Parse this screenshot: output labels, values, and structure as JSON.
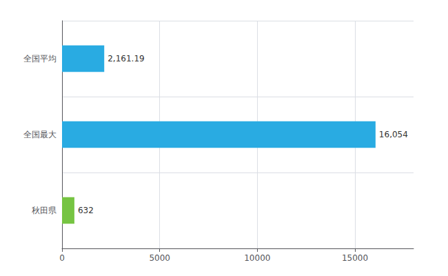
{
  "chart_data": {
    "type": "bar",
    "orientation": "horizontal",
    "categories": [
      "全国平均",
      "全国最大",
      "秋田県"
    ],
    "values": [
      2161.19,
      16054,
      632
    ],
    "value_labels": [
      "2,161.19",
      "16,054",
      "632"
    ],
    "colors": [
      "#29ABE2",
      "#29ABE2",
      "#76C442"
    ],
    "xlim": [
      0,
      18000
    ],
    "xticks": [
      0,
      5000,
      10000,
      15000
    ],
    "grid": true,
    "data_labels": true
  }
}
